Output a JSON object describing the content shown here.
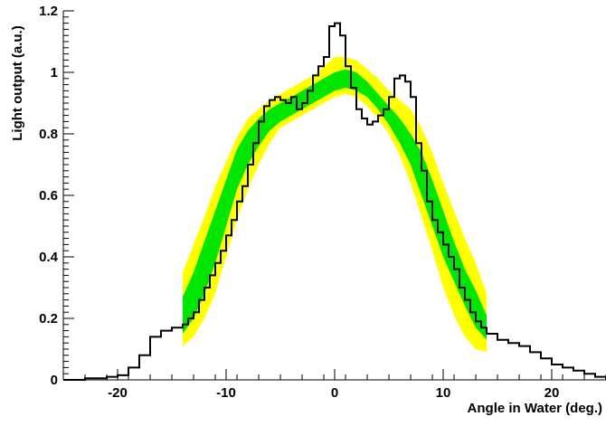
{
  "chart_data": {
    "type": "line",
    "title": "",
    "xlabel": "Angle in Water (deg.)",
    "ylabel": "Light output (a.u.)",
    "xlim": [
      -25,
      25
    ],
    "ylim": [
      0,
      1.2
    ],
    "x_ticks": [
      -20,
      -10,
      0,
      10,
      20
    ],
    "x_tick_labels": [
      "-20",
      "-10",
      "0",
      "10",
      "20"
    ],
    "y_ticks": [
      0,
      0.2,
      0.4,
      0.6,
      0.8,
      1,
      1.2
    ],
    "y_tick_labels": [
      "0",
      "0.2",
      "0.4",
      "0.6",
      "0.8",
      "1",
      "1.2"
    ],
    "grid": false,
    "colors": {
      "histogram": "#000000",
      "inner_band": "#00e600",
      "outer_band": "#ffff00",
      "axis": "#000000",
      "background": "#ffffff"
    },
    "bands": {
      "x": [
        -14,
        -13,
        -12,
        -11,
        -10,
        -9,
        -8,
        -7,
        -6,
        -5,
        -4,
        -3,
        -2,
        -1,
        0,
        1,
        2,
        3,
        4,
        5,
        6,
        7,
        8,
        9,
        10,
        11,
        12,
        13,
        14
      ],
      "outer_upper": [
        0.35,
        0.44,
        0.53,
        0.63,
        0.71,
        0.79,
        0.85,
        0.88,
        0.91,
        0.93,
        0.95,
        0.97,
        0.99,
        1.02,
        1.05,
        1.05,
        1.04,
        1.01,
        0.98,
        0.94,
        0.91,
        0.88,
        0.82,
        0.74,
        0.64,
        0.55,
        0.46,
        0.38,
        0.28
      ],
      "inner_upper": [
        0.27,
        0.35,
        0.45,
        0.55,
        0.65,
        0.75,
        0.81,
        0.85,
        0.88,
        0.9,
        0.92,
        0.94,
        0.96,
        0.98,
        1.0,
        1.01,
        1.0,
        0.97,
        0.93,
        0.89,
        0.85,
        0.8,
        0.74,
        0.65,
        0.55,
        0.45,
        0.36,
        0.29,
        0.21
      ],
      "inner_lower": [
        0.15,
        0.2,
        0.28,
        0.38,
        0.5,
        0.62,
        0.7,
        0.76,
        0.81,
        0.84,
        0.86,
        0.88,
        0.9,
        0.92,
        0.94,
        0.95,
        0.94,
        0.92,
        0.88,
        0.83,
        0.77,
        0.7,
        0.6,
        0.5,
        0.4,
        0.32,
        0.24,
        0.17,
        0.13
      ],
      "outer_lower": [
        0.11,
        0.14,
        0.2,
        0.28,
        0.4,
        0.52,
        0.62,
        0.7,
        0.77,
        0.82,
        0.84,
        0.86,
        0.88,
        0.9,
        0.92,
        0.93,
        0.92,
        0.89,
        0.85,
        0.8,
        0.73,
        0.64,
        0.53,
        0.42,
        0.3,
        0.21,
        0.14,
        0.1,
        0.09
      ]
    },
    "histogram": {
      "edges": [
        -25,
        -24,
        -23,
        -22,
        -21,
        -20,
        -19,
        -18,
        -17,
        -16,
        -15,
        -14,
        -13.5,
        -13,
        -12.5,
        -12,
        -11.5,
        -11,
        -10.5,
        -10,
        -9.5,
        -9,
        -8.5,
        -8,
        -7.5,
        -7,
        -6.5,
        -6,
        -5.5,
        -5,
        -4.5,
        -4,
        -3.5,
        -3,
        -2.5,
        -2,
        -1.5,
        -1,
        -0.5,
        0,
        0.5,
        1,
        1.5,
        2,
        2.5,
        3,
        3.5,
        4,
        4.5,
        5,
        5.5,
        6,
        6.5,
        7,
        7.5,
        8,
        8.5,
        9,
        9.5,
        10,
        10.5,
        11,
        11.5,
        12,
        12.5,
        13,
        13.5,
        14,
        15,
        16,
        17,
        18,
        19,
        20,
        21,
        22,
        23,
        24,
        25
      ],
      "values": [
        0.0,
        0.0,
        0.005,
        0.005,
        0.01,
        0.015,
        0.04,
        0.08,
        0.14,
        0.16,
        0.17,
        0.18,
        0.2,
        0.22,
        0.26,
        0.3,
        0.34,
        0.38,
        0.42,
        0.47,
        0.52,
        0.58,
        0.63,
        0.7,
        0.77,
        0.84,
        0.89,
        0.91,
        0.92,
        0.91,
        0.9,
        0.92,
        0.88,
        0.9,
        0.94,
        0.99,
        1.02,
        1.05,
        1.15,
        1.16,
        1.12,
        1.02,
        0.95,
        0.88,
        0.85,
        0.83,
        0.84,
        0.86,
        0.88,
        0.92,
        0.98,
        0.99,
        0.97,
        0.92,
        0.77,
        0.68,
        0.58,
        0.52,
        0.48,
        0.44,
        0.4,
        0.36,
        0.3,
        0.26,
        0.22,
        0.19,
        0.17,
        0.15,
        0.13,
        0.12,
        0.11,
        0.09,
        0.07,
        0.05,
        0.04,
        0.03,
        0.02,
        0.01,
        0.0
      ]
    }
  }
}
